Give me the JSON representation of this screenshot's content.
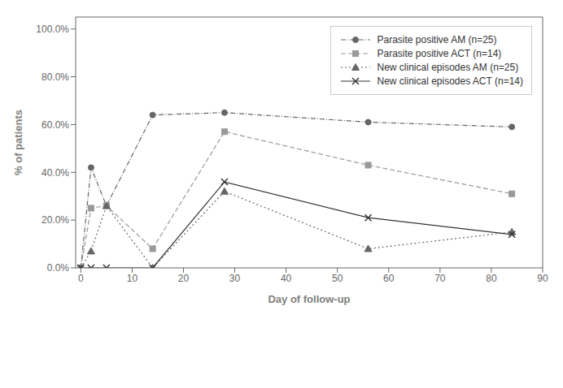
{
  "chart_data": {
    "type": "line",
    "x": [
      0,
      2,
      5,
      14,
      28,
      56,
      84
    ],
    "series": [
      {
        "name": "Parasite positive AM (n=25)",
        "color": "#666666",
        "values": [
          0.0,
          0.42,
          0.26,
          0.64,
          0.65,
          0.61,
          0.59
        ],
        "marker": "circle",
        "line_style": "dashdot"
      },
      {
        "name": "Parasite positive ACT (n=14)",
        "color": "#999999",
        "values": [
          0.0,
          0.25,
          0.26,
          0.08,
          0.57,
          0.43,
          0.31
        ],
        "marker": "square",
        "line_style": "dashed"
      },
      {
        "name": "New clinical episodes AM (n=25)",
        "color": "#666666",
        "values": [
          0.0,
          0.07,
          0.26,
          0.0,
          0.32,
          0.08,
          0.15
        ],
        "marker": "triangle",
        "line_style": "dotted"
      },
      {
        "name": "New clinical episodes ACT (n=14)",
        "color": "#333333",
        "values": [
          0.0,
          0.0,
          0.0,
          0.0,
          0.36,
          0.21,
          0.14
        ],
        "marker": "x",
        "line_style": "solid"
      }
    ],
    "xlabel": "Day of follow-up",
    "ylabel": "% of patients",
    "xlim": [
      -1,
      90
    ],
    "ylim": [
      0.0,
      1.05
    ],
    "xticks": [
      0,
      10,
      20,
      30,
      40,
      50,
      60,
      70,
      80,
      90
    ],
    "yticks": [
      {
        "value": 0.0,
        "label": "0.0%"
      },
      {
        "value": 0.2,
        "label": "20.0%"
      },
      {
        "value": 0.4,
        "label": "40.0%"
      },
      {
        "value": 0.6,
        "label": "60.0%"
      },
      {
        "value": 0.8,
        "label": "80.0%"
      },
      {
        "value": 1.0,
        "label": "100.0%"
      }
    ],
    "legend": "upper right"
  }
}
